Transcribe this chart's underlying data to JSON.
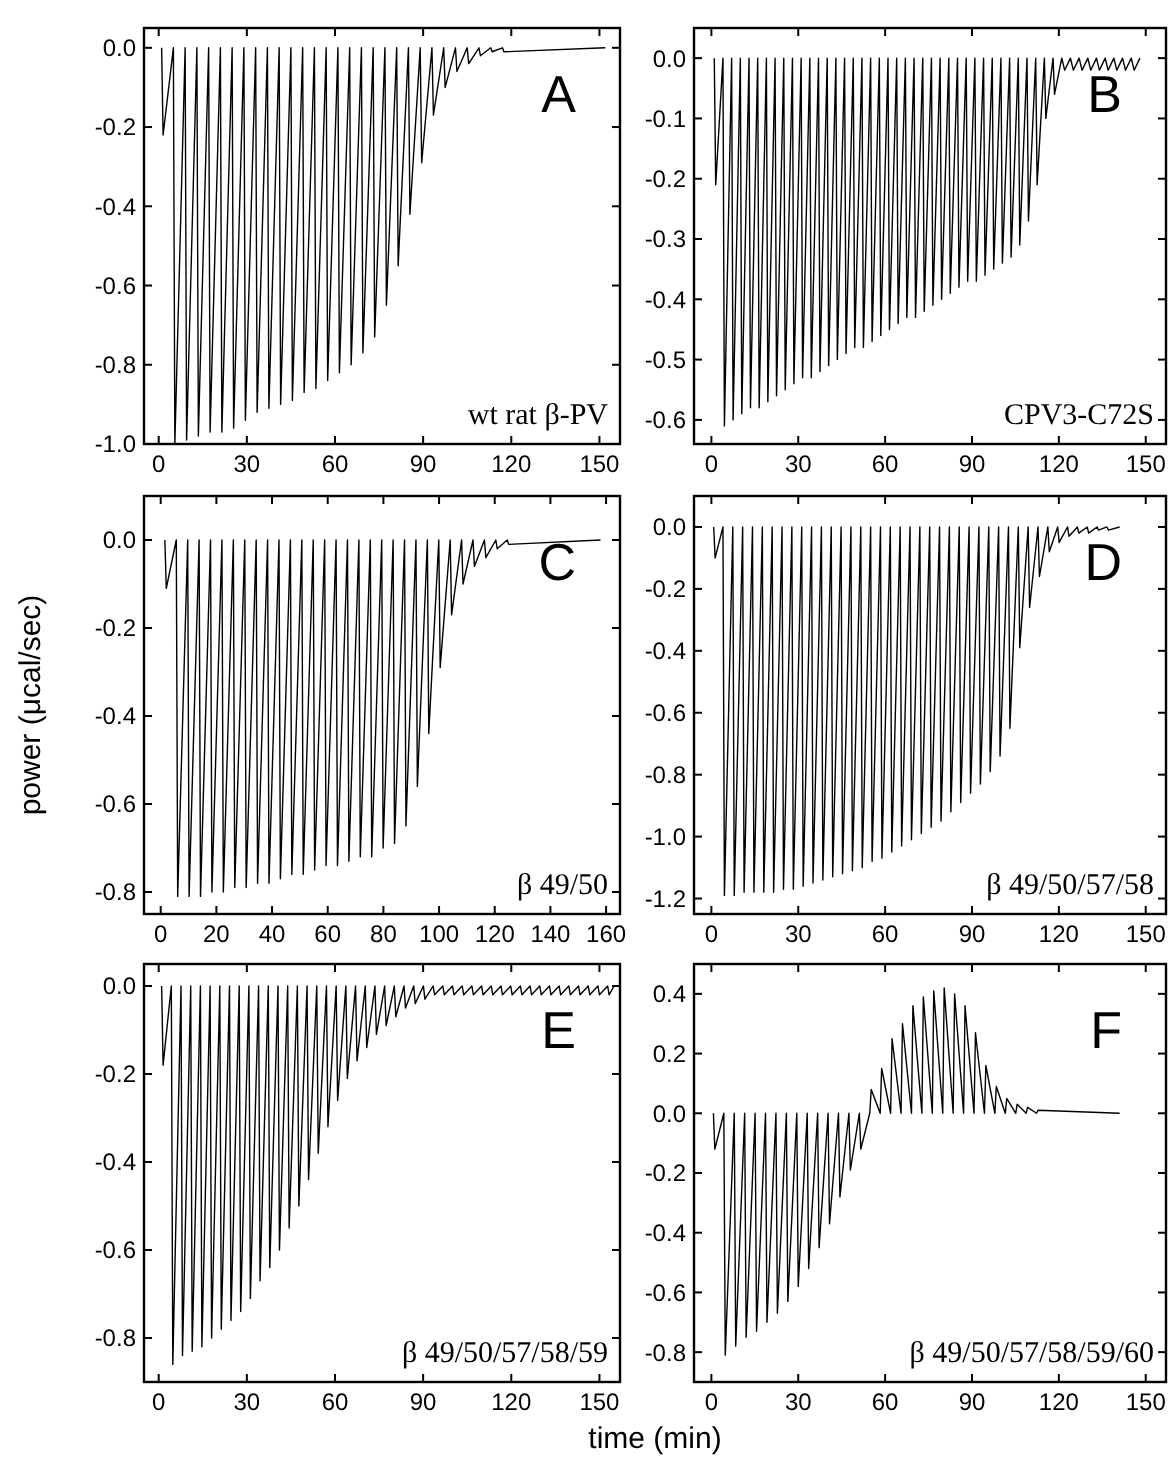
{
  "chart_data": [
    {
      "type": "line",
      "color": "#000000",
      "annotations": [
        "A",
        "wt rat β-PV"
      ],
      "xlim": [
        -5,
        157
      ],
      "xticks": [
        0,
        30,
        60,
        90,
        120,
        150
      ],
      "ylim": [
        -1.0,
        0.05
      ],
      "yticks": [
        {
          "value": 0,
          "label": "0.0"
        },
        -0.2,
        -0.4,
        -0.6,
        -0.8,
        {
          "value": -1,
          "label": "-1.0"
        }
      ],
      "x": [
        1,
        1.5,
        5,
        5.5,
        9,
        9.5,
        13,
        13.5,
        17,
        17.5,
        21,
        21.5,
        25,
        25.5,
        29,
        29.5,
        33,
        33.5,
        37,
        37.5,
        41,
        41.5,
        45,
        45.5,
        49,
        49.5,
        53,
        53.5,
        57,
        57.5,
        61,
        61.5,
        65,
        65.5,
        69,
        69.5,
        73,
        73.5,
        77,
        77.5,
        81,
        81.5,
        85,
        85.5,
        89,
        89.5,
        93,
        93.5,
        97,
        97.5,
        101,
        101.5,
        105,
        105.5,
        109,
        109.5,
        113,
        113.5,
        117,
        117.5,
        152
      ],
      "values": [
        0,
        -0.22,
        0,
        -1.0,
        0,
        -0.99,
        0,
        -0.98,
        0,
        -0.97,
        0,
        -0.97,
        0,
        -0.96,
        0,
        -0.94,
        0,
        -0.92,
        0,
        -0.91,
        0,
        -0.9,
        0,
        -0.89,
        0,
        -0.87,
        0,
        -0.86,
        0,
        -0.84,
        0,
        -0.82,
        0,
        -0.8,
        0,
        -0.77,
        0,
        -0.73,
        0,
        -0.65,
        0,
        -0.55,
        0,
        -0.42,
        0,
        -0.29,
        0,
        -0.17,
        0,
        -0.1,
        0,
        -0.06,
        0,
        -0.04,
        0,
        -0.02,
        0,
        -0.01,
        0,
        -0.01,
        0
      ]
    },
    {
      "type": "line",
      "color": "#000000",
      "annotations": [
        "B",
        "CPV3-C72S"
      ],
      "xlim": [
        -6,
        157
      ],
      "xticks": [
        0,
        30,
        60,
        90,
        120,
        150
      ],
      "ylim": [
        -0.64,
        0.05
      ],
      "yticks": [
        {
          "value": 0,
          "label": "0.0"
        },
        -0.1,
        -0.2,
        -0.3,
        -0.4,
        -0.5,
        -0.6
      ],
      "x": [
        1,
        1.5,
        4,
        4.5,
        7,
        7.5,
        10,
        10.5,
        13,
        13.5,
        16,
        16.5,
        19,
        19.5,
        22,
        22.5,
        25,
        25.5,
        28,
        28.5,
        31,
        31.5,
        34,
        34.5,
        37,
        37.5,
        40,
        40.5,
        43,
        43.5,
        46,
        46.5,
        49,
        49.5,
        52,
        52.5,
        55,
        55.5,
        58,
        58.5,
        61,
        61.5,
        64,
        64.5,
        67,
        67.5,
        70,
        70.5,
        73,
        73.5,
        76,
        76.5,
        79,
        79.5,
        82,
        82.5,
        85,
        85.5,
        88,
        88.5,
        91,
        91.5,
        94,
        94.5,
        97,
        97.5,
        100,
        100.5,
        103,
        103.5,
        106,
        106.5,
        109,
        109.5,
        112,
        112.5,
        115,
        115.5,
        118,
        118.5,
        121,
        122,
        124,
        125,
        127,
        128,
        130,
        131,
        133,
        134,
        136,
        137,
        139,
        140,
        142,
        143,
        145,
        146,
        148
      ],
      "values": [
        0,
        -0.21,
        0,
        -0.61,
        0,
        -0.6,
        0,
        -0.59,
        0,
        -0.58,
        0,
        -0.58,
        0,
        -0.57,
        0,
        -0.56,
        0,
        -0.55,
        0,
        -0.54,
        0,
        -0.53,
        0,
        -0.53,
        0,
        -0.52,
        0,
        -0.51,
        0,
        -0.5,
        0,
        -0.49,
        0,
        -0.48,
        0,
        -0.48,
        0,
        -0.47,
        0,
        -0.46,
        0,
        -0.45,
        0,
        -0.44,
        0,
        -0.43,
        0,
        -0.43,
        0,
        -0.42,
        0,
        -0.41,
        0,
        -0.4,
        0,
        -0.39,
        0,
        -0.38,
        0,
        -0.37,
        0,
        -0.37,
        0,
        -0.36,
        0,
        -0.35,
        0,
        -0.34,
        0,
        -0.33,
        0,
        -0.31,
        0,
        -0.27,
        0,
        -0.21,
        0,
        -0.1,
        0,
        -0.06,
        0,
        -0.02,
        0,
        -0.02,
        0,
        -0.02,
        0,
        -0.02,
        0,
        -0.02,
        0,
        -0.02,
        0,
        -0.02,
        0,
        -0.02,
        0,
        -0.02,
        0
      ]
    },
    {
      "type": "line",
      "color": "#000000",
      "annotations": [
        "C",
        "β 49/50"
      ],
      "ylabel": "power (μcal/sec)",
      "xlim": [
        -6,
        165
      ],
      "xticks": [
        0,
        20,
        40,
        60,
        80,
        100,
        120,
        140,
        160
      ],
      "ylim": [
        -0.85,
        0.1
      ],
      "yticks": [
        {
          "value": 0,
          "label": "0.0"
        },
        -0.2,
        -0.4,
        -0.6,
        -0.8
      ],
      "x": [
        1.5,
        2,
        5.6,
        6.1,
        9.7,
        10.2,
        13.8,
        14.3,
        17.9,
        18.4,
        22,
        22.5,
        26.1,
        26.6,
        30.2,
        30.7,
        34.3,
        34.8,
        38.4,
        38.9,
        42.5,
        43,
        46.6,
        47.1,
        50.7,
        51.2,
        54.8,
        55.3,
        58.9,
        59.4,
        63,
        63.5,
        67.1,
        67.6,
        71.2,
        71.7,
        75.3,
        75.8,
        79.4,
        79.9,
        83.5,
        84,
        87.6,
        88.1,
        91.7,
        92.2,
        95.8,
        96.3,
        99.9,
        100.4,
        104,
        104.5,
        108.1,
        108.6,
        112.2,
        112.7,
        116.3,
        116.8,
        120.4,
        120.9,
        124.5,
        125,
        158
      ],
      "values": [
        0,
        -0.11,
        0,
        -0.81,
        0,
        -0.81,
        0,
        -0.81,
        0,
        -0.8,
        0,
        -0.8,
        0,
        -0.79,
        0,
        -0.79,
        0,
        -0.78,
        0,
        -0.78,
        0,
        -0.77,
        0,
        -0.76,
        0,
        -0.76,
        0,
        -0.75,
        0,
        -0.74,
        0,
        -0.74,
        0,
        -0.73,
        0,
        -0.72,
        0,
        -0.72,
        0,
        -0.7,
        0,
        -0.69,
        0,
        -0.65,
        0,
        -0.56,
        0,
        -0.44,
        0,
        -0.29,
        0,
        -0.17,
        0,
        -0.1,
        0,
        -0.06,
        0,
        -0.04,
        0,
        -0.02,
        0,
        -0.01,
        0
      ]
    },
    {
      "type": "line",
      "color": "#000000",
      "annotations": [
        "D",
        "β 49/50/57/58"
      ],
      "xlim": [
        -6,
        157
      ],
      "xticks": [
        0,
        30,
        60,
        90,
        120,
        150
      ],
      "ylim": [
        -1.25,
        0.1
      ],
      "yticks": [
        {
          "value": 0,
          "label": "0.0"
        },
        -0.2,
        -0.4,
        -0.6,
        -0.8,
        {
          "value": -1,
          "label": "-1.0"
        },
        -1.2
      ],
      "x": [
        0.8,
        1.3,
        4,
        4.5,
        7.4,
        7.9,
        10.8,
        11.3,
        14.2,
        14.7,
        17.6,
        18.1,
        21,
        21.5,
        24.4,
        24.9,
        27.8,
        28.3,
        31.2,
        31.7,
        34.6,
        35.1,
        38,
        38.5,
        41.4,
        41.9,
        44.8,
        45.3,
        48.2,
        48.7,
        51.6,
        52.1,
        55,
        55.5,
        58.4,
        58.9,
        61.8,
        62.3,
        65.2,
        65.7,
        68.6,
        69.1,
        72,
        72.5,
        75.4,
        75.9,
        78.8,
        79.3,
        82.2,
        82.7,
        85.6,
        86.1,
        89,
        89.5,
        92.4,
        92.9,
        95.8,
        96.3,
        99.2,
        99.7,
        102.6,
        103.1,
        106,
        106.5,
        109.4,
        109.9,
        112.8,
        113.3,
        116.2,
        116.7,
        119.6,
        120.1,
        123,
        123.5,
        126.4,
        126.9,
        129.8,
        130.3,
        133.2,
        133.7,
        136.6,
        137.1,
        141
      ],
      "values": [
        0,
        -0.1,
        0,
        -1.19,
        0,
        -1.19,
        0,
        -1.18,
        0,
        -1.18,
        0,
        -1.18,
        0,
        -1.18,
        0,
        -1.17,
        0,
        -1.17,
        0,
        -1.16,
        0,
        -1.15,
        0,
        -1.14,
        0,
        -1.13,
        0,
        -1.12,
        0,
        -1.11,
        0,
        -1.1,
        0,
        -1.08,
        0,
        -1.07,
        0,
        -1.05,
        0,
        -1.03,
        0,
        -1.01,
        0,
        -0.99,
        0,
        -0.97,
        0,
        -0.95,
        0,
        -0.92,
        0,
        -0.89,
        0,
        -0.86,
        0,
        -0.83,
        0,
        -0.79,
        0,
        -0.74,
        0,
        -0.65,
        0,
        -0.39,
        0,
        -0.26,
        0,
        -0.16,
        0,
        -0.08,
        0,
        -0.05,
        0,
        -0.03,
        0,
        -0.02,
        0,
        -0.02,
        0,
        -0.01,
        0,
        -0.01,
        0
      ]
    },
    {
      "type": "line",
      "color": "#000000",
      "annotations": [
        "E",
        "β 49/50/57/58/59"
      ],
      "xlabel": "time (min)",
      "xlim": [
        -5,
        157
      ],
      "xticks": [
        0,
        30,
        60,
        90,
        120,
        150
      ],
      "ylim": [
        -0.9,
        0.05
      ],
      "yticks": [
        {
          "value": 0,
          "label": "0.0"
        },
        -0.2,
        -0.4,
        -0.6,
        -0.8
      ],
      "x": [
        1,
        1.5,
        4.3,
        4.8,
        7.6,
        8.1,
        10.9,
        11.4,
        14.2,
        14.7,
        17.5,
        18,
        20.8,
        21.3,
        24.1,
        24.6,
        27.4,
        27.9,
        30.7,
        31.2,
        34,
        34.5,
        37.3,
        37.8,
        40.6,
        41.1,
        43.9,
        44.4,
        47.2,
        47.7,
        50.5,
        51,
        53.8,
        54.3,
        57.1,
        57.6,
        60.4,
        60.9,
        63.7,
        64.2,
        67,
        67.5,
        70.3,
        70.8,
        73.6,
        74.1,
        76.9,
        77.4,
        80.2,
        80.7,
        83.5,
        84,
        86.8,
        87.3,
        90.1,
        90.6,
        93.4,
        93.9,
        96.7,
        97.2,
        100,
        100.5,
        103.3,
        103.8,
        106.6,
        107.1,
        109.9,
        110.4,
        113.2,
        113.7,
        116.5,
        117,
        119.8,
        120.3,
        123.1,
        123.6,
        126.4,
        126.9,
        129.7,
        130.2,
        133,
        133.5,
        136.3,
        136.8,
        139.6,
        140.1,
        142.9,
        143.4,
        146.2,
        146.7,
        149.5,
        150,
        152.8,
        153.3,
        155
      ],
      "values": [
        0,
        -0.18,
        0,
        -0.86,
        0,
        -0.84,
        0,
        -0.83,
        0,
        -0.82,
        0,
        -0.8,
        0,
        -0.78,
        0,
        -0.76,
        0,
        -0.74,
        0,
        -0.71,
        0,
        -0.67,
        0,
        -0.64,
        0,
        -0.6,
        0,
        -0.55,
        0,
        -0.5,
        0,
        -0.44,
        0,
        -0.38,
        0,
        -0.32,
        0,
        -0.26,
        0,
        -0.21,
        0,
        -0.17,
        0,
        -0.14,
        0,
        -0.11,
        0,
        -0.09,
        0,
        -0.07,
        0,
        -0.05,
        0,
        -0.04,
        0,
        -0.03,
        0,
        -0.02,
        0,
        -0.02,
        0,
        -0.02,
        0,
        -0.02,
        0,
        -0.02,
        0,
        -0.02,
        0,
        -0.02,
        0,
        -0.02,
        0,
        -0.02,
        0,
        -0.02,
        0,
        -0.02,
        0,
        -0.02,
        0,
        -0.02,
        0,
        -0.02,
        0,
        -0.02,
        0,
        -0.02,
        0,
        -0.02,
        0,
        -0.02,
        0,
        -0.02,
        0
      ]
    },
    {
      "type": "line",
      "color": "#000000",
      "annotations": [
        "F",
        "β 49/50/57/58/59/60"
      ],
      "xlim": [
        -6,
        157
      ],
      "xticks": [
        0,
        30,
        60,
        90,
        120,
        150
      ],
      "ylim": [
        -0.9,
        0.5
      ],
      "yticks": [
        {
          "value": 0.4,
          "label": "0.4"
        },
        {
          "value": 0.2,
          "label": "0.2"
        },
        {
          "value": 0,
          "label": "0.0"
        },
        -0.2,
        -0.4,
        -0.6,
        -0.8
      ],
      "x": [
        0.7,
        1.2,
        4.3,
        4.8,
        7.9,
        8.4,
        11.5,
        12,
        15.1,
        15.6,
        18.7,
        19.2,
        22.3,
        22.8,
        25.9,
        26.4,
        29.5,
        30,
        33.1,
        33.6,
        36.7,
        37.2,
        40.3,
        40.8,
        43.9,
        44.4,
        47.5,
        48,
        51.1,
        51.6,
        54.7,
        55.2,
        58.3,
        58.8,
        61.9,
        62.4,
        65.5,
        66,
        69.1,
        69.6,
        72.7,
        73.2,
        76.3,
        76.8,
        79.9,
        80.4,
        83.5,
        84,
        87.1,
        87.6,
        90.7,
        91.2,
        94.3,
        94.8,
        97.9,
        98.4,
        101.5,
        102,
        105.1,
        105.6,
        108.7,
        109.2,
        112.3,
        112.8,
        141
      ],
      "values": [
        0,
        -0.12,
        0,
        -0.81,
        0,
        -0.78,
        0,
        -0.75,
        0,
        -0.73,
        0,
        -0.7,
        0,
        -0.67,
        0,
        -0.63,
        0,
        -0.58,
        0,
        -0.52,
        0,
        -0.45,
        0,
        -0.37,
        0,
        -0.28,
        0,
        -0.19,
        0,
        -0.12,
        0,
        0.08,
        0,
        0.15,
        0,
        0.25,
        0,
        0.3,
        0,
        0.36,
        0,
        0.39,
        0,
        0.41,
        0,
        0.42,
        0,
        0.4,
        0,
        0.36,
        0,
        0.27,
        0,
        0.16,
        0,
        0.09,
        0,
        0.05,
        0,
        0.03,
        0,
        0.02,
        0,
        0.01,
        0
      ]
    }
  ]
}
